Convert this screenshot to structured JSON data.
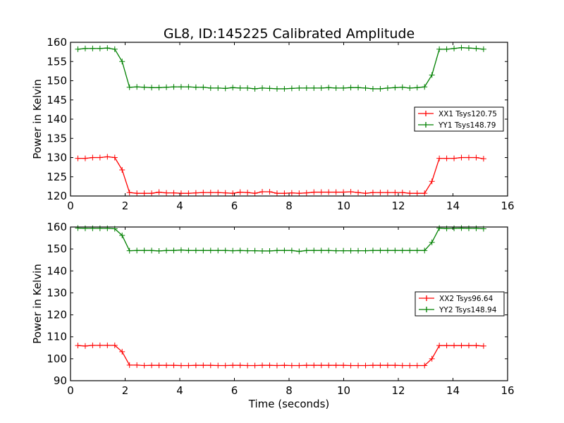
{
  "chart_data": [
    {
      "type": "line",
      "title": "GL8, ID:145225 Calibrated Amplitude",
      "xlabel": "",
      "ylabel": "Power in Kelvin",
      "xlim": [
        0,
        16
      ],
      "ylim": [
        120,
        160
      ],
      "xticks": [
        0,
        2,
        4,
        6,
        8,
        10,
        12,
        14,
        16
      ],
      "yticks": [
        120,
        125,
        130,
        135,
        140,
        145,
        150,
        155,
        160
      ],
      "legend_position": "right",
      "x": [
        0.27,
        0.54,
        0.81,
        1.08,
        1.35,
        1.62,
        1.89,
        2.16,
        2.43,
        2.7,
        2.97,
        3.24,
        3.51,
        3.78,
        4.05,
        4.32,
        4.59,
        4.86,
        5.13,
        5.4,
        5.67,
        5.94,
        6.21,
        6.48,
        6.75,
        7.02,
        7.29,
        7.56,
        7.83,
        8.1,
        8.37,
        8.64,
        8.91,
        9.18,
        9.45,
        9.72,
        9.99,
        10.26,
        10.53,
        10.8,
        11.07,
        11.34,
        11.61,
        11.88,
        12.15,
        12.42,
        12.69,
        12.96,
        13.23,
        13.5,
        13.77,
        14.04,
        14.31,
        14.58,
        14.85,
        15.12
      ],
      "series": [
        {
          "name": "XX1 Tsys120.75",
          "color": "#ff0000",
          "values": [
            129.8,
            129.8,
            130.0,
            130.0,
            130.2,
            130.0,
            126.8,
            120.9,
            120.7,
            120.7,
            120.7,
            121.0,
            120.8,
            120.8,
            120.7,
            120.7,
            120.8,
            120.9,
            120.9,
            120.9,
            120.8,
            120.7,
            121.0,
            120.9,
            120.7,
            121.1,
            121.1,
            120.7,
            120.7,
            120.8,
            120.7,
            120.8,
            121.0,
            121.0,
            121.0,
            121.0,
            121.0,
            121.1,
            120.9,
            120.7,
            120.9,
            120.9,
            120.9,
            120.9,
            120.9,
            120.7,
            120.7,
            120.7,
            123.8,
            129.8,
            129.8,
            129.8,
            130.0,
            130.0,
            130.0,
            129.7
          ]
        },
        {
          "name": "YY1 Tsys148.79",
          "color": "#008000",
          "values": [
            158.2,
            158.4,
            158.4,
            158.4,
            158.5,
            158.2,
            155.0,
            148.3,
            148.4,
            148.3,
            148.2,
            148.2,
            148.3,
            148.4,
            148.4,
            148.4,
            148.3,
            148.3,
            148.1,
            148.1,
            148.0,
            148.2,
            148.1,
            148.1,
            147.9,
            148.1,
            148.0,
            147.9,
            147.9,
            148.0,
            148.1,
            148.1,
            148.1,
            148.1,
            148.2,
            148.1,
            148.1,
            148.2,
            148.2,
            148.1,
            147.9,
            147.9,
            148.1,
            148.2,
            148.3,
            148.1,
            148.2,
            148.4,
            151.5,
            158.2,
            158.2,
            158.4,
            158.6,
            158.5,
            158.4,
            158.2
          ]
        }
      ]
    },
    {
      "type": "line",
      "title": "",
      "xlabel": "Time (seconds)",
      "ylabel": "Power in Kelvin",
      "xlim": [
        0,
        16
      ],
      "ylim": [
        90,
        160
      ],
      "xticks": [
        0,
        2,
        4,
        6,
        8,
        10,
        12,
        14,
        16
      ],
      "yticks": [
        90,
        100,
        110,
        120,
        130,
        140,
        150,
        160
      ],
      "legend_position": "right",
      "x": [
        0.27,
        0.54,
        0.81,
        1.08,
        1.35,
        1.62,
        1.89,
        2.16,
        2.43,
        2.7,
        2.97,
        3.24,
        3.51,
        3.78,
        4.05,
        4.32,
        4.59,
        4.86,
        5.13,
        5.4,
        5.67,
        5.94,
        6.21,
        6.48,
        6.75,
        7.02,
        7.29,
        7.56,
        7.83,
        8.1,
        8.37,
        8.64,
        8.91,
        9.18,
        9.45,
        9.72,
        9.99,
        10.26,
        10.53,
        10.8,
        11.07,
        11.34,
        11.61,
        11.88,
        12.15,
        12.42,
        12.69,
        12.96,
        13.23,
        13.5,
        13.77,
        14.04,
        14.31,
        14.58,
        14.85,
        15.12
      ],
      "series": [
        {
          "name": "XX2 Tsys96.64",
          "color": "#ff0000",
          "values": [
            106.0,
            105.8,
            106.1,
            106.1,
            106.1,
            106.1,
            103.2,
            97.1,
            97.1,
            96.9,
            97.0,
            97.0,
            97.0,
            97.0,
            96.9,
            96.9,
            97.0,
            97.0,
            97.0,
            96.9,
            96.9,
            97.0,
            97.0,
            96.9,
            96.9,
            97.0,
            97.0,
            96.9,
            97.0,
            96.9,
            96.9,
            97.0,
            97.0,
            97.0,
            97.0,
            97.0,
            97.0,
            96.9,
            96.9,
            96.9,
            97.0,
            97.0,
            97.0,
            97.0,
            96.9,
            96.9,
            96.9,
            96.9,
            100.0,
            106.0,
            106.0,
            106.0,
            106.0,
            106.0,
            106.0,
            105.8
          ]
        },
        {
          "name": "YY2 Tsys148.94",
          "color": "#008000",
          "values": [
            159.5,
            159.4,
            159.4,
            159.4,
            159.4,
            159.2,
            156.2,
            149.2,
            149.3,
            149.3,
            149.3,
            149.1,
            149.3,
            149.3,
            149.5,
            149.3,
            149.3,
            149.3,
            149.3,
            149.3,
            149.3,
            149.2,
            149.3,
            149.2,
            149.2,
            149.1,
            149.1,
            149.3,
            149.3,
            149.3,
            148.9,
            149.3,
            149.3,
            149.3,
            149.3,
            149.2,
            149.2,
            149.2,
            149.2,
            149.2,
            149.3,
            149.3,
            149.3,
            149.3,
            149.3,
            149.3,
            149.3,
            149.3,
            153.0,
            159.5,
            159.3,
            159.4,
            159.5,
            159.4,
            159.4,
            159.2
          ]
        }
      ]
    }
  ]
}
